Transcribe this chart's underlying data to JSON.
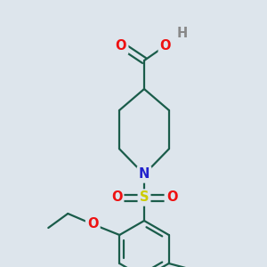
{
  "bg_color": "#dde5ec",
  "bond_color": "#1a5c4a",
  "atom_colors": {
    "O": "#ee1111",
    "N": "#2222cc",
    "S": "#cccc00",
    "H": "#888888",
    "C": "#1a5c4a"
  },
  "bond_width": 1.6,
  "font_size": 10.5,
  "figsize": [
    3.0,
    3.0
  ],
  "dpi": 100
}
